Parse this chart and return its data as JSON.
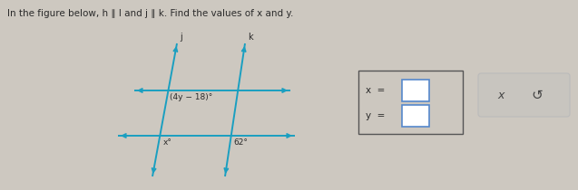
{
  "title_text": "In the figure below, h ∥ l and j ∥ k. Find the values of x and y.",
  "bg_color": "#cdc8c0",
  "line_color": "#1a9fc0",
  "text_color": "#2a2a2a",
  "label_color": "#2a2a2a",
  "label_j": "j",
  "label_k": "k",
  "label_4y18": "(4y − 18)°",
  "label_x": "x°",
  "label_62": "62°",
  "box1_face": "#ccc7bf",
  "box1_edge": "#555555",
  "rect_edge": "#5588cc",
  "rect_face": "#ffffff",
  "box2_face": "#c8c5bf",
  "box2_edge": "#aaaaaa",
  "sym_x": "x",
  "sym_redo": "↺"
}
